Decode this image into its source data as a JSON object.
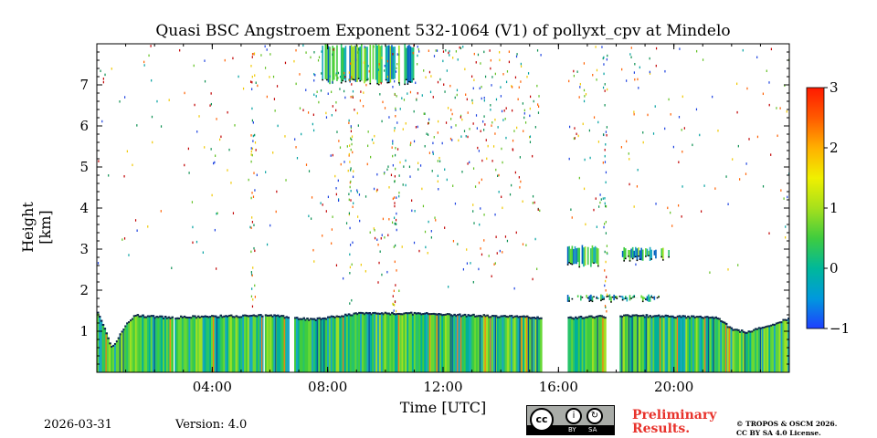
{
  "chart_data": {
    "type": "heatmap",
    "title": "Quasi BSC Angstroem Exponent 532-1064 (V1) of pollyxt_cpv at Mindelo",
    "xlabel": "Time [UTC]",
    "ylabel": "Height [km]",
    "xlim_hours": [
      0,
      24
    ],
    "ylim_km": [
      0,
      8
    ],
    "x_ticks": [
      {
        "value": 4,
        "label": "04:00"
      },
      {
        "value": 8,
        "label": "08:00"
      },
      {
        "value": 12,
        "label": "12:00"
      },
      {
        "value": 16,
        "label": "16:00"
      },
      {
        "value": 20,
        "label": "20:00"
      }
    ],
    "y_ticks": [
      {
        "value": 1,
        "label": "1"
      },
      {
        "value": 2,
        "label": "2"
      },
      {
        "value": 3,
        "label": "3"
      },
      {
        "value": 4,
        "label": "4"
      },
      {
        "value": 5,
        "label": "5"
      },
      {
        "value": 6,
        "label": "6"
      },
      {
        "value": 7,
        "label": "7"
      }
    ],
    "colorbar": {
      "min": -1,
      "max": 3,
      "ticks": [
        {
          "value": 3,
          "label": "3"
        },
        {
          "value": 2,
          "label": "2"
        },
        {
          "value": 1,
          "label": "1"
        },
        {
          "value": 0,
          "label": "0"
        },
        {
          "value": -1,
          "label": "−1"
        }
      ],
      "colors": [
        "#1f3fff",
        "#0099dd",
        "#00b89a",
        "#3fcc3f",
        "#a6e01c",
        "#f0f000",
        "#ffb000",
        "#ff5a00",
        "#ff1a00"
      ]
    },
    "boundary_layer_top_km": [
      {
        "t": 0.0,
        "h": 1.5
      },
      {
        "t": 0.5,
        "h": 0.6
      },
      {
        "t": 1.0,
        "h": 1.2
      },
      {
        "t": 1.3,
        "h": 1.4
      },
      {
        "t": 2.5,
        "h": 1.35
      },
      {
        "t": 4.0,
        "h": 1.38
      },
      {
        "t": 6.0,
        "h": 1.4
      },
      {
        "t": 7.5,
        "h": 1.3
      },
      {
        "t": 9.0,
        "h": 1.45
      },
      {
        "t": 11.0,
        "h": 1.45
      },
      {
        "t": 13.0,
        "h": 1.4
      },
      {
        "t": 15.5,
        "h": 1.35
      },
      {
        "t": 16.5,
        "h": 1.35
      },
      {
        "t": 18.5,
        "h": 1.4
      },
      {
        "t": 21.5,
        "h": 1.35
      },
      {
        "t": 22.0,
        "h": 1.05
      },
      {
        "t": 22.5,
        "h": 1.0
      },
      {
        "t": 23.5,
        "h": 1.2
      },
      {
        "t": 24.0,
        "h": 1.35
      }
    ],
    "data_gaps_hours": [
      [
        15.4,
        16.3
      ],
      [
        17.6,
        18.1
      ],
      [
        6.6,
        6.8
      ],
      [
        2.6,
        2.7
      ],
      [
        5.7,
        5.8
      ]
    ],
    "cloud_layers": [
      {
        "t_start": 16.3,
        "t_end": 17.4,
        "h_bottom": 2.55,
        "h_top": 3.1
      },
      {
        "t_start": 18.1,
        "t_end": 19.9,
        "h_bottom": 2.7,
        "h_top": 3.05
      },
      {
        "t_start": 16.3,
        "t_end": 19.5,
        "h_bottom": 1.7,
        "h_top": 1.9
      },
      {
        "t_start": 7.8,
        "t_end": 11.0,
        "h_bottom": 7.0,
        "h_top": 8.0
      }
    ]
  },
  "footer": {
    "date": "2026-03-31",
    "version": "Version: 4.0",
    "license_badge": {
      "by": "BY",
      "sa": "SA"
    },
    "preliminary_line1": "Preliminary",
    "preliminary_line2": "Results.",
    "copyright_line1": "© TROPOS & OSCM 2026.",
    "copyright_line2": "CC BY SA 4.0 License."
  }
}
